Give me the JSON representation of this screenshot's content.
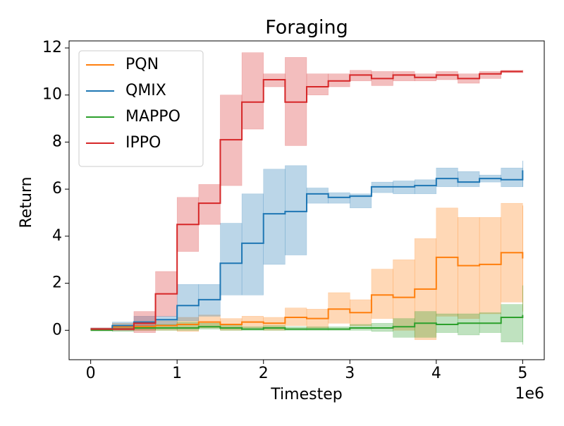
{
  "chart_data": {
    "type": "line",
    "title": "Foraging",
    "xlabel": "Timestep",
    "ylabel": "Return",
    "x_offset_label": "1e6",
    "x": [
      0,
      0.25,
      0.5,
      0.75,
      1,
      1.25,
      1.5,
      1.75,
      2,
      2.25,
      2.5,
      2.75,
      3,
      3.25,
      3.5,
      3.75,
      4,
      4.25,
      4.5,
      4.75,
      5
    ],
    "xlim": [
      -0.25,
      5.25
    ],
    "xticks": [
      0,
      1,
      2,
      3,
      4,
      5
    ],
    "ylim": [
      -1.25,
      12.3
    ],
    "yticks": [
      0,
      2,
      4,
      6,
      8,
      10,
      12
    ],
    "grid": false,
    "legend": "upper left",
    "step": "post",
    "series": [
      {
        "name": "PQN",
        "color": "#ff7f0e",
        "values": [
          0.05,
          0.15,
          0.15,
          0.2,
          0.25,
          0.35,
          0.25,
          0.35,
          0.3,
          0.55,
          0.5,
          0.9,
          0.75,
          1.5,
          1.4,
          1.75,
          3.1,
          2.75,
          2.8,
          3.3,
          3.05
        ],
        "lower": [
          0,
          0,
          0,
          0,
          -0.05,
          0.1,
          0,
          0.1,
          0,
          0.2,
          0.1,
          0.3,
          0.2,
          0.5,
          0,
          -0.4,
          0.6,
          0.5,
          0.7,
          1.2,
          0.8
        ],
        "upper": [
          0.1,
          0.3,
          0.35,
          0.4,
          0.55,
          0.65,
          0.5,
          0.6,
          0.55,
          0.95,
          0.9,
          1.6,
          1.3,
          2.6,
          3.0,
          3.9,
          5.2,
          4.8,
          4.8,
          5.4,
          5.3
        ]
      },
      {
        "name": "QMIX",
        "color": "#1f77b4",
        "values": [
          0.05,
          0.2,
          0.35,
          0.45,
          1.05,
          1.3,
          2.85,
          3.7,
          4.95,
          5.05,
          5.8,
          5.65,
          5.7,
          6.1,
          6.1,
          6.15,
          6.45,
          6.3,
          6.45,
          6.4,
          6.8
        ],
        "lower": [
          0,
          0,
          0.1,
          0.2,
          0.4,
          0.6,
          1.5,
          1.5,
          2.8,
          3.2,
          5.4,
          5.4,
          5.2,
          5.85,
          5.8,
          5.8,
          6.1,
          6.1,
          6.3,
          6.1,
          6.1
        ],
        "upper": [
          0.1,
          0.35,
          0.6,
          0.6,
          1.95,
          1.95,
          4.55,
          5.8,
          6.85,
          7.0,
          6.05,
          5.85,
          5.8,
          6.3,
          6.35,
          6.4,
          6.9,
          6.75,
          6.6,
          6.9,
          7.2
        ]
      },
      {
        "name": "MAPPO",
        "color": "#2ca02c",
        "values": [
          0,
          0.05,
          0.1,
          0.1,
          0.1,
          0.15,
          0.1,
          0.05,
          0.1,
          0.05,
          0.05,
          0.05,
          0.1,
          0.1,
          0.15,
          0.3,
          0.25,
          0.3,
          0.3,
          0.55,
          0.65
        ],
        "lower": [
          0,
          -0.05,
          0,
          0,
          0,
          0.05,
          0,
          0,
          0,
          0,
          0,
          0,
          0,
          -0.05,
          -0.3,
          -0.3,
          -0.1,
          -0.2,
          -0.1,
          -0.5,
          -0.6
        ],
        "upper": [
          0.05,
          0.15,
          0.2,
          0.25,
          0.35,
          0.3,
          0.25,
          0.15,
          0.2,
          0.15,
          0.15,
          0.15,
          0.25,
          0.3,
          0.5,
          0.8,
          0.7,
          0.7,
          0.75,
          1.1,
          1.9
        ]
      },
      {
        "name": "IPPO",
        "color": "#d62728",
        "values": [
          0.05,
          0.05,
          0.3,
          1.55,
          4.5,
          5.4,
          8.1,
          9.7,
          10.65,
          9.7,
          10.35,
          10.6,
          10.85,
          10.7,
          10.85,
          10.75,
          10.85,
          10.7,
          10.9,
          11.0,
          11.0
        ],
        "lower": [
          0,
          0,
          -0.1,
          0.6,
          3.35,
          4.5,
          6.15,
          8.55,
          10.35,
          7.85,
          10.0,
          10.35,
          10.6,
          10.4,
          10.6,
          10.6,
          10.65,
          10.5,
          10.7,
          10.95,
          10.95
        ],
        "upper": [
          0.1,
          0.1,
          0.8,
          2.5,
          5.65,
          6.2,
          10.0,
          11.8,
          10.9,
          11.6,
          10.9,
          10.9,
          11.05,
          11.0,
          11.0,
          10.9,
          11.0,
          10.9,
          11.0,
          11.05,
          11.05
        ]
      }
    ]
  }
}
